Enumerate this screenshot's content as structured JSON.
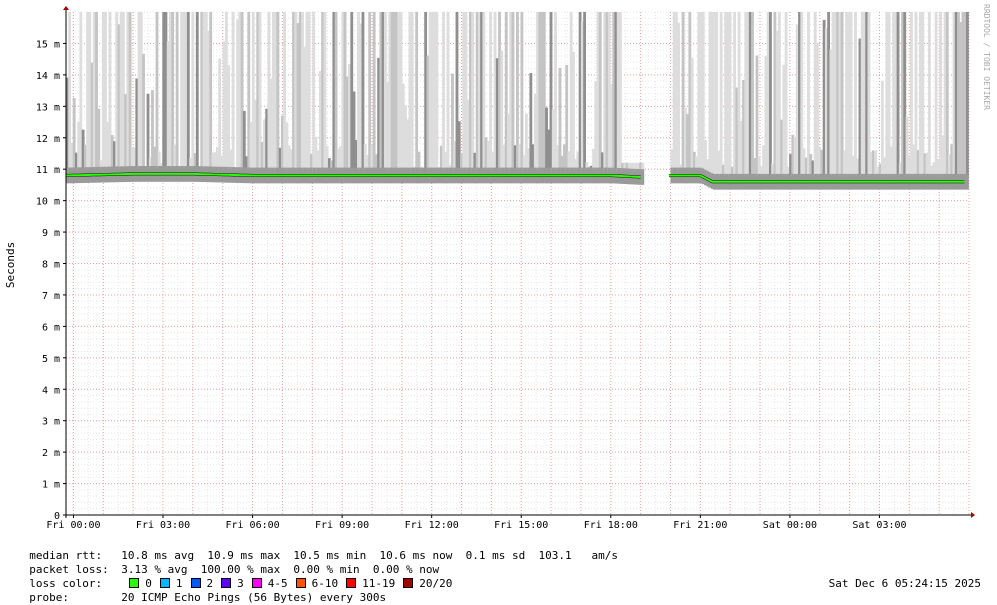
{
  "chart_data": {
    "type": "line",
    "ylabel": "Seconds",
    "watermark": "RRDTOOL / TOBI OETIKER",
    "y_ticks": [
      {
        "v": 0,
        "label": "0"
      },
      {
        "v": 1,
        "label": "1 m"
      },
      {
        "v": 2,
        "label": "2 m"
      },
      {
        "v": 3,
        "label": "3 m"
      },
      {
        "v": 4,
        "label": "4 m"
      },
      {
        "v": 5,
        "label": "5 m"
      },
      {
        "v": 6,
        "label": "6 m"
      },
      {
        "v": 7,
        "label": "7 m"
      },
      {
        "v": 8,
        "label": "8 m"
      },
      {
        "v": 9,
        "label": "9 m"
      },
      {
        "v": 10,
        "label": "10 m"
      },
      {
        "v": 11,
        "label": "11 m"
      },
      {
        "v": 12,
        "label": "12 m"
      },
      {
        "v": 13,
        "label": "13 m"
      },
      {
        "v": 14,
        "label": "14 m"
      },
      {
        "v": 15,
        "label": "15 m"
      }
    ],
    "y_unit": "ms",
    "ylim": [
      0,
      16
    ],
    "x_ticks": [
      {
        "h": 0,
        "label": "Fri 00:00"
      },
      {
        "h": 3,
        "label": "Fri 03:00"
      },
      {
        "h": 6,
        "label": "Fri 06:00"
      },
      {
        "h": 9,
        "label": "Fri 09:00"
      },
      {
        "h": 12,
        "label": "Fri 12:00"
      },
      {
        "h": 15,
        "label": "Fri 15:00"
      },
      {
        "h": 18,
        "label": "Fri 18:00"
      },
      {
        "h": 21,
        "label": "Fri 21:00"
      },
      {
        "h": 24,
        "label": "Sat 00:00"
      },
      {
        "h": 27,
        "label": "Sat 03:00"
      }
    ],
    "xlim_hours": [
      -0.25,
      30.0
    ],
    "gap_hours": [
      19.05,
      19.95
    ],
    "median_series": [
      {
        "h": -0.25,
        "ms": 10.8
      },
      {
        "h": 2.0,
        "ms": 10.85
      },
      {
        "h": 4.0,
        "ms": 10.85
      },
      {
        "h": 6.0,
        "ms": 10.8
      },
      {
        "h": 8.0,
        "ms": 10.8
      },
      {
        "h": 10.0,
        "ms": 10.8
      },
      {
        "h": 12.0,
        "ms": 10.8
      },
      {
        "h": 14.0,
        "ms": 10.8
      },
      {
        "h": 16.0,
        "ms": 10.8
      },
      {
        "h": 18.0,
        "ms": 10.8
      },
      {
        "h": 19.0,
        "ms": 10.75
      },
      {
        "h": 20.0,
        "ms": 10.8
      },
      {
        "h": 21.0,
        "ms": 10.8
      },
      {
        "h": 21.4,
        "ms": 10.6
      },
      {
        "h": 23.0,
        "ms": 10.6
      },
      {
        "h": 25.0,
        "ms": 10.6
      },
      {
        "h": 27.0,
        "ms": 10.6
      },
      {
        "h": 29.9,
        "ms": 10.6
      }
    ],
    "grid": true
  },
  "legend": {
    "rtt_key": "median rtt:",
    "rtt_value": "10.8 ms avg  10.9 ms max  10.5 ms min  10.6 ms now  0.1 ms sd  103.1   am/s",
    "loss_key": "packet loss:",
    "loss_value": "3.13 % avg  100.00 % max  0.00 % min  0.00 % now",
    "color_key": "loss color:",
    "loss_colors": [
      {
        "label": "0",
        "color": "#26ff00"
      },
      {
        "label": "1",
        "color": "#00b8ff"
      },
      {
        "label": "2",
        "color": "#0059ff"
      },
      {
        "label": "3",
        "color": "#5e00ff"
      },
      {
        "label": "4-5",
        "color": "#ff00ff"
      },
      {
        "label": "6-10",
        "color": "#ff5500"
      },
      {
        "label": "11-19",
        "color": "#ff0000"
      },
      {
        "label": "20/20",
        "color": "#a10000"
      }
    ],
    "probe_key": "probe:",
    "probe_value": "20 ICMP Echo Pings (56 Bytes) every 300s"
  },
  "timestamp": "Sat Dec  6 05:24:15 2025"
}
